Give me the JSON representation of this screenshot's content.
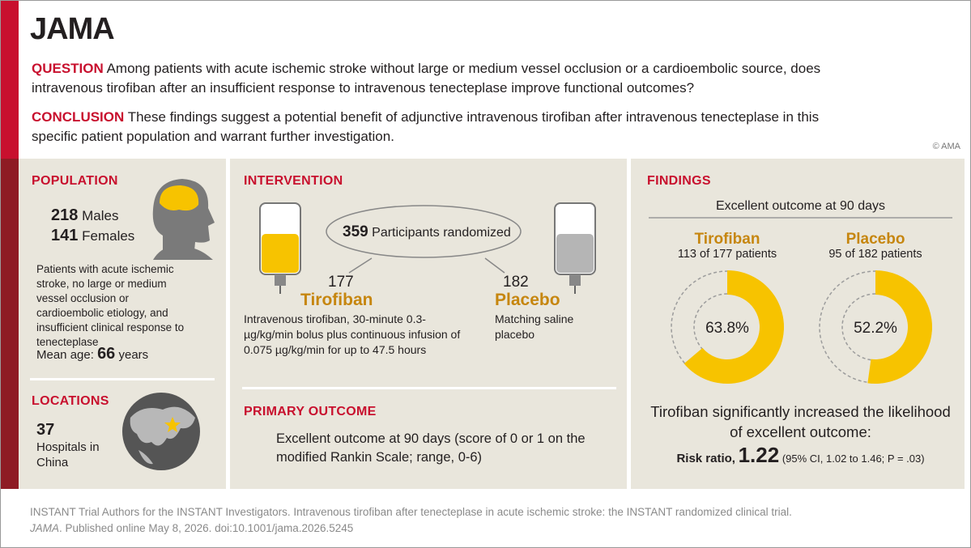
{
  "header": {
    "logo": "JAMA",
    "question_label": "QUESTION",
    "question": "Among patients with acute ischemic stroke without large or medium vessel occlusion or a cardioembolic source, does intravenous tirofiban after an insufficient response to intravenous tenecteplase improve functional outcomes?",
    "conclusion_label": "CONCLUSION",
    "conclusion": "These findings suggest a potential benefit of adjunctive intravenous tirofiban after intravenous tenecteplase in this specific patient population and warrant further investigation.",
    "copyright": "© AMA"
  },
  "population": {
    "title": "POPULATION",
    "groups": [
      {
        "count": 218,
        "label": "Males"
      },
      {
        "count": 141,
        "label": "Females"
      }
    ],
    "description": "Patients with acute ischemic stroke, no large or medium vessel occlusion or cardioembolic etiology, and insufficient clinical response to tenecteplase",
    "mean_age_label": "Mean age:",
    "mean_age": 66,
    "mean_age_unit": "years"
  },
  "locations": {
    "title": "LOCATIONS",
    "count": 37,
    "label": "Hospitals in China"
  },
  "intervention": {
    "title": "INTERVENTION",
    "randomized": 359,
    "randomized_label": "Participants randomized",
    "arms": [
      {
        "count": 177,
        "name": "Tirofiban",
        "description": "Intravenous tirofiban, 30-minute 0.3-µg/kg/min bolus plus continuous infusion of 0.075 µg/kg/min for up to 47.5 hours"
      },
      {
        "count": 182,
        "name": "Placebo",
        "description": "Matching saline placebo"
      }
    ]
  },
  "primary_outcome": {
    "title": "PRIMARY OUTCOME",
    "text": "Excellent outcome at 90 days (score of 0 or 1 on the modified Rankin Scale; range, 0-6)"
  },
  "findings": {
    "title": "FINDINGS",
    "subtitle": "Excellent outcome at 90 days",
    "color": "#f7c300",
    "groups": [
      {
        "name": "Tirofiban",
        "summary": "113 of 177 patients",
        "percent": {
          "value": 63.8,
          "label": "63.8%"
        }
      },
      {
        "name": "Placebo",
        "summary": "95 of 182 patients",
        "percent": {
          "value": 52.2,
          "label": "52.2%"
        }
      }
    ],
    "conclusion": "Tirofiban significantly increased the likelihood of excellent outcome:",
    "rr_label": "Risk ratio,",
    "rr": 1.22,
    "ci": "(95% CI, 1.02 to 1.46; P = .03)"
  },
  "citation": {
    "line1": "INSTANT Trial Authors for the INSTANT Investigators. Intravenous tirofiban after tenecteplase in acute ischemic stroke: the INSTANT randomized clinical trial.",
    "journal": "JAMA",
    "line2": ". Published online May 8, 2026. doi:10.1001/jama.2026.5245"
  }
}
